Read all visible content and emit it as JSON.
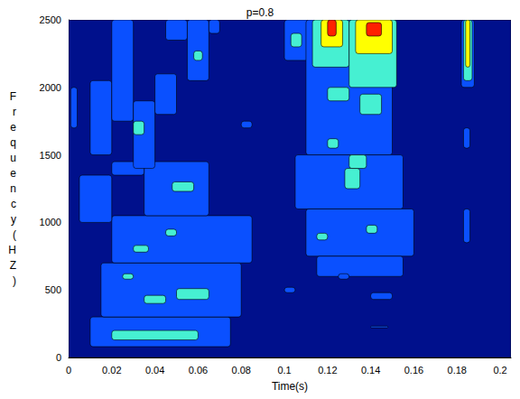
{
  "chart_data": {
    "type": "contour",
    "title": "p=0.8",
    "x_label": "Time(s)",
    "y_label": "Frequency(HZ)",
    "xlim": [
      0,
      0.205
    ],
    "ylim": [
      0,
      2500
    ],
    "xticks": [
      0,
      0.02,
      0.04,
      0.06,
      0.08,
      0.1,
      0.12,
      0.14,
      0.16,
      0.18,
      0.2
    ],
    "yticks": [
      0,
      500,
      1000,
      1500,
      2000,
      2500
    ],
    "levels": [
      0,
      1,
      2,
      3,
      4
    ],
    "colors": [
      "#00108c",
      "#0a50ff",
      "#46f0d2",
      "#ffff00",
      "#ff2000"
    ],
    "cells": [
      [
        0,
        0.205,
        0,
        2500,
        0
      ],
      [
        0.01,
        0.075,
        80,
        300,
        1
      ],
      [
        0.015,
        0.08,
        300,
        700,
        1
      ],
      [
        0.02,
        0.085,
        700,
        1050,
        1
      ],
      [
        0.035,
        0.065,
        1050,
        1450,
        1
      ],
      [
        0.005,
        0.02,
        1000,
        1350,
        1
      ],
      [
        0.02,
        0.035,
        1350,
        1450,
        1
      ],
      [
        0.01,
        0.02,
        1500,
        2050,
        1
      ],
      [
        0.02,
        0.03,
        1750,
        2500,
        1
      ],
      [
        0.03,
        0.04,
        1400,
        1900,
        1
      ],
      [
        0.04,
        0.05,
        1800,
        2100,
        1
      ],
      [
        0.045,
        0.055,
        2350,
        2500,
        1
      ],
      [
        0.055,
        0.065,
        2050,
        2500,
        1
      ],
      [
        0.065,
        0.07,
        2400,
        2500,
        1
      ],
      [
        0.001,
        0.004,
        1700,
        2000,
        1
      ],
      [
        0.08,
        0.085,
        1700,
        1750,
        1
      ],
      [
        0.1,
        0.115,
        2200,
        2500,
        1
      ],
      [
        0.11,
        0.15,
        1500,
        2500,
        1
      ],
      [
        0.105,
        0.155,
        1100,
        1500,
        1
      ],
      [
        0.11,
        0.16,
        750,
        1100,
        1
      ],
      [
        0.115,
        0.155,
        600,
        750,
        1
      ],
      [
        0.1,
        0.105,
        480,
        520,
        1
      ],
      [
        0.14,
        0.15,
        430,
        480,
        1
      ],
      [
        0.125,
        0.13,
        580,
        620,
        1
      ],
      [
        0.14,
        0.148,
        220,
        232,
        1
      ],
      [
        0.182,
        0.188,
        2000,
        2500,
        1
      ],
      [
        0.183,
        0.186,
        1550,
        1700,
        1
      ],
      [
        0.183,
        0.186,
        850,
        1100,
        1
      ],
      [
        0.02,
        0.06,
        130,
        200,
        2
      ],
      [
        0.035,
        0.045,
        400,
        460,
        2
      ],
      [
        0.05,
        0.065,
        430,
        510,
        2
      ],
      [
        0.025,
        0.03,
        580,
        620,
        2
      ],
      [
        0.03,
        0.037,
        780,
        830,
        2
      ],
      [
        0.045,
        0.05,
        900,
        950,
        2
      ],
      [
        0.048,
        0.058,
        1230,
        1300,
        2
      ],
      [
        0.03,
        0.035,
        1650,
        1750,
        2
      ],
      [
        0.058,
        0.062,
        2200,
        2270,
        2
      ],
      [
        0.103,
        0.108,
        2300,
        2400,
        2
      ],
      [
        0.113,
        0.13,
        2150,
        2500,
        2
      ],
      [
        0.13,
        0.152,
        2000,
        2500,
        2
      ],
      [
        0.12,
        0.13,
        1900,
        2000,
        2
      ],
      [
        0.135,
        0.145,
        1800,
        1950,
        2
      ],
      [
        0.12,
        0.125,
        1550,
        1620,
        2
      ],
      [
        0.128,
        0.135,
        1250,
        1400,
        2
      ],
      [
        0.13,
        0.138,
        1400,
        1500,
        2
      ],
      [
        0.115,
        0.12,
        870,
        920,
        2
      ],
      [
        0.138,
        0.143,
        920,
        980,
        2
      ],
      [
        0.183,
        0.187,
        2050,
        2500,
        2
      ],
      [
        0.117,
        0.127,
        2300,
        2500,
        3
      ],
      [
        0.133,
        0.15,
        2250,
        2500,
        3
      ],
      [
        0.184,
        0.186,
        2150,
        2500,
        3
      ],
      [
        0.12,
        0.124,
        2380,
        2500,
        4
      ],
      [
        0.138,
        0.145,
        2380,
        2480,
        4
      ]
    ]
  }
}
